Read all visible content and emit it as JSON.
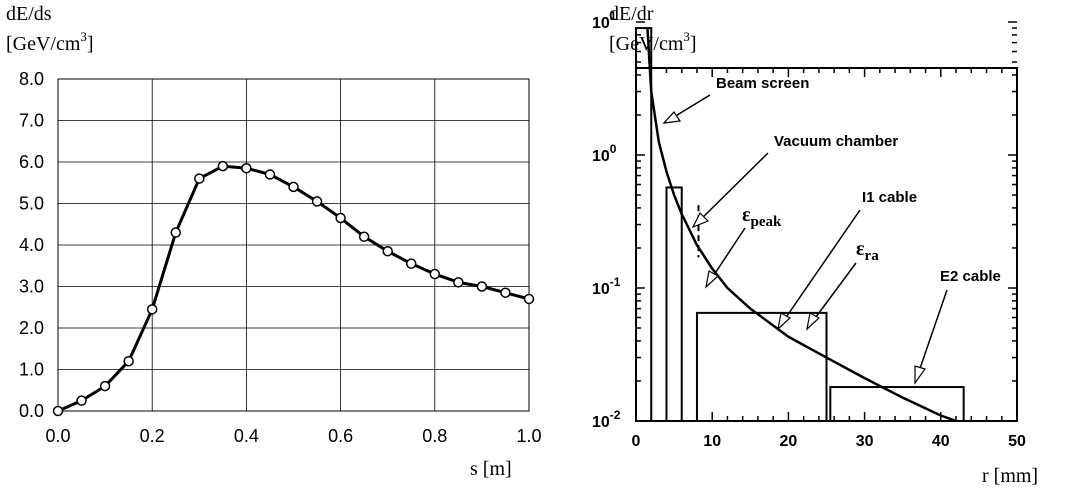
{
  "chart_data": [
    {
      "type": "line",
      "ylabel": "dE/ds",
      "yunit": "[GeV/cm",
      "yunit_sup": "3",
      "yunit_close": "]",
      "xlabel": "s [m]",
      "xlim": [
        0,
        1.0
      ],
      "ylim": [
        0,
        8.0
      ],
      "x_ticks": [
        "0.0",
        "0.2",
        "0.4",
        "0.6",
        "0.8",
        "1.0"
      ],
      "y_ticks": [
        "0.0",
        "1.0",
        "2.0",
        "3.0",
        "4.0",
        "5.0",
        "6.0",
        "7.0",
        "8.0"
      ],
      "grid": true,
      "series": [
        {
          "x": [
            0.0,
            0.05,
            0.1,
            0.15,
            0.2,
            0.25,
            0.3,
            0.35,
            0.4,
            0.45,
            0.5,
            0.55,
            0.6,
            0.65,
            0.7,
            0.75,
            0.8,
            0.85,
            0.9,
            0.95,
            1.0
          ],
          "y": [
            0.0,
            0.25,
            0.6,
            1.2,
            2.45,
            4.3,
            5.6,
            5.9,
            5.85,
            5.7,
            5.4,
            5.05,
            4.65,
            4.2,
            3.85,
            3.55,
            3.3,
            3.1,
            3.0,
            2.85,
            2.7
          ]
        }
      ]
    },
    {
      "type": "bar",
      "ylabel": "dE/dr",
      "yunit": "[GeV/cm",
      "yunit_sup": "3",
      "yunit_close": "]",
      "xlabel": "r [mm]",
      "xlim": [
        0,
        50
      ],
      "ylim": [
        0.01,
        15
      ],
      "yscale": "log",
      "x_ticks": [
        "0",
        "10",
        "20",
        "30",
        "40",
        "50"
      ],
      "y_ticks": [
        {
          "base": "10",
          "exp": "1",
          "value": 10
        },
        {
          "base": "10",
          "exp": "0",
          "value": 1
        },
        {
          "base": "10",
          "exp": "-1",
          "value": 0.1
        },
        {
          "base": "10",
          "exp": "-2",
          "value": 0.01
        }
      ],
      "bars": [
        {
          "x0": 0,
          "x1": 2,
          "value": 9
        },
        {
          "x0": 4,
          "x1": 6,
          "value": 0.57
        },
        {
          "x0": 8,
          "x1": 25,
          "value": 0.065
        },
        {
          "x0": 25.5,
          "x1": 43,
          "value": 0.018
        }
      ],
      "curve": {
        "x": [
          1.5,
          2,
          3,
          4,
          5,
          6,
          8,
          10,
          12,
          15,
          20,
          25,
          30,
          35,
          40,
          42
        ],
        "y": [
          9,
          3.0,
          1.25,
          0.75,
          0.5,
          0.36,
          0.21,
          0.14,
          0.1,
          0.07,
          0.043,
          0.03,
          0.021,
          0.015,
          0.011,
          0.01
        ]
      },
      "peak_marker_x": 8.2,
      "annotations": {
        "beam_screen": "Beam screen",
        "vacuum_chamber": "Vacuum chamber",
        "eps_peak_symbol": "ε",
        "eps_peak_sub": "peak",
        "i1_cable": "I1 cable",
        "eps_ra_symbol": "ε",
        "eps_ra_sub": "ra",
        "e2_cable": "E2 cable"
      }
    }
  ]
}
